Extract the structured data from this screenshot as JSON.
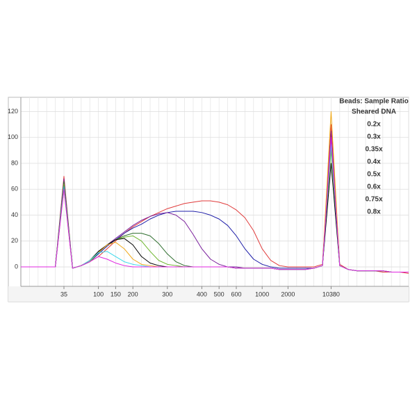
{
  "chart_data": {
    "type": "line",
    "legend_title": "Beads: Sample Ratio",
    "legend_position": "top-right",
    "grid": true,
    "categories": [
      null,
      null,
      null,
      null,
      null,
      35,
      null,
      null,
      null,
      100,
      null,
      150,
      null,
      200,
      null,
      null,
      null,
      300,
      null,
      null,
      null,
      400,
      null,
      500,
      null,
      600,
      null,
      null,
      1000,
      null,
      null,
      2000,
      null,
      null,
      null,
      null,
      10380,
      null,
      null,
      null,
      null,
      null,
      null,
      null,
      null,
      null
    ],
    "ylim": [
      -15,
      131
    ],
    "yticks": [
      0,
      20,
      40,
      60,
      80,
      100,
      120
    ],
    "series": [
      {
        "name": "Sheared DNA",
        "color": "#e03a3a",
        "values": [
          0,
          0,
          0,
          0,
          0,
          70,
          -1,
          1,
          4,
          8,
          14,
          20,
          26,
          31,
          35,
          39,
          42,
          45,
          47,
          49,
          50,
          51,
          51,
          50,
          48,
          44,
          38,
          28,
          14,
          5,
          1,
          0,
          0,
          0,
          0,
          2,
          110,
          2,
          -2,
          -3,
          -3,
          -3,
          -4,
          -4,
          -4,
          -5
        ]
      },
      {
        "name": "0.2x",
        "color": "#1c1ca8",
        "values": [
          0,
          0,
          0,
          0,
          0,
          65,
          -1,
          1,
          4,
          10,
          16,
          21,
          26,
          30,
          33,
          37,
          40,
          42,
          43,
          43,
          43,
          42,
          40,
          37,
          32,
          24,
          14,
          6,
          2,
          0,
          -1,
          -1,
          -1,
          -1,
          -1,
          1,
          100,
          1,
          -2,
          -3,
          -3,
          -3,
          -3,
          -4,
          -4,
          -4
        ]
      },
      {
        "name": "0.3x",
        "color": "#7a1f9c",
        "values": [
          0,
          0,
          0,
          0,
          0,
          68,
          -1,
          1,
          4,
          11,
          17,
          22,
          27,
          32,
          36,
          39,
          41,
          42,
          40,
          35,
          25,
          14,
          6,
          2,
          0,
          0,
          -1,
          -1,
          -1,
          -1,
          -2,
          -2,
          -2,
          -2,
          -1,
          1,
          105,
          1,
          -2,
          -3,
          -3,
          -3,
          -3,
          -4,
          -4,
          -4
        ]
      },
      {
        "name": "0.35x",
        "color": "#2e6e2e",
        "values": [
          0,
          0,
          0,
          0,
          0,
          66,
          -1,
          1,
          4,
          11,
          17,
          21,
          24,
          26,
          26,
          24,
          18,
          10,
          4,
          1,
          0,
          0,
          0,
          0,
          0,
          -1,
          -1,
          -1,
          -1,
          -1,
          -2,
          -2,
          -2,
          -2,
          -1,
          1,
          95,
          1,
          -2,
          -3,
          -3,
          -3,
          -3,
          -4,
          -4,
          -4
        ]
      },
      {
        "name": "0.4x",
        "color": "#6cb52c",
        "values": [
          0,
          0,
          0,
          0,
          0,
          64,
          -1,
          1,
          4,
          11,
          17,
          21,
          23,
          24,
          20,
          12,
          5,
          2,
          1,
          0,
          0,
          0,
          0,
          0,
          0,
          -1,
          -1,
          -1,
          -1,
          -1,
          -2,
          -2,
          -2,
          -2,
          -1,
          1,
          90,
          1,
          -2,
          -3,
          -3,
          -3,
          -3,
          -4,
          -4,
          -4
        ]
      },
      {
        "name": "0.5x",
        "color": "#000000",
        "values": [
          0,
          0,
          0,
          0,
          0,
          62,
          -1,
          1,
          5,
          12,
          17,
          21,
          22,
          17,
          8,
          3,
          1,
          0,
          0,
          0,
          0,
          0,
          0,
          0,
          0,
          -1,
          -1,
          -1,
          -1,
          -1,
          -2,
          -2,
          -2,
          -2,
          -1,
          1,
          80,
          1,
          -2,
          -3,
          -3,
          -3,
          -3,
          -4,
          -4,
          -4
        ]
      },
      {
        "name": "0.6x",
        "color": "#f0a818",
        "values": [
          0,
          0,
          0,
          0,
          0,
          60,
          -1,
          1,
          5,
          11,
          17,
          19,
          14,
          6,
          2,
          1,
          0,
          0,
          0,
          0,
          0,
          0,
          0,
          0,
          0,
          -1,
          -1,
          -1,
          -1,
          -1,
          -2,
          -2,
          -2,
          -2,
          -1,
          1,
          120,
          1,
          -2,
          -3,
          -3,
          -3,
          -3,
          -4,
          -4,
          -4
        ]
      },
      {
        "name": "0.75x",
        "color": "#3ad8ec",
        "values": [
          0,
          0,
          0,
          0,
          0,
          62,
          -1,
          1,
          5,
          11,
          12,
          8,
          4,
          2,
          1,
          0,
          0,
          0,
          0,
          0,
          0,
          0,
          0,
          0,
          0,
          -1,
          -1,
          -1,
          -1,
          -1,
          -2,
          -2,
          -2,
          -2,
          -1,
          1,
          95,
          1,
          -2,
          -3,
          -3,
          -3,
          -3,
          -4,
          -4,
          -4
        ]
      },
      {
        "name": "0.8x",
        "color": "#e024e0",
        "values": [
          0,
          0,
          0,
          0,
          0,
          60,
          -1,
          1,
          4,
          8,
          6,
          3,
          1,
          0,
          0,
          0,
          0,
          0,
          0,
          0,
          0,
          0,
          0,
          0,
          0,
          -1,
          -1,
          -1,
          -1,
          -1,
          -2,
          -2,
          -2,
          -2,
          -1,
          1,
          100,
          1,
          -2,
          -3,
          -3,
          -3,
          -3,
          -4,
          -4,
          -4
        ]
      }
    ]
  }
}
